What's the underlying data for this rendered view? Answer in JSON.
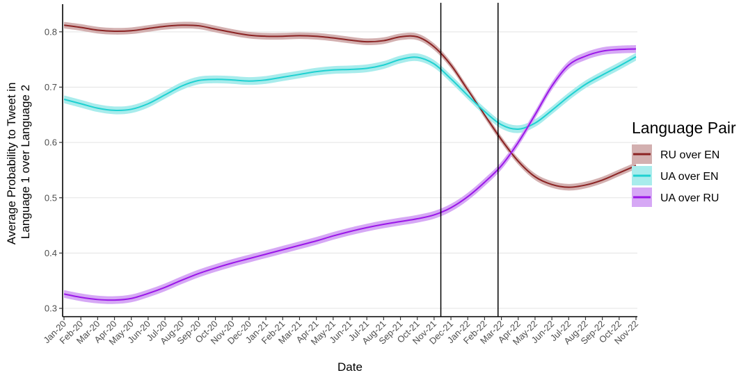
{
  "chart_data": {
    "type": "line",
    "title": "",
    "xlabel": "Date",
    "ylabel_lines": [
      "Average Probability to Tweet in",
      "Language 1 over Language 2"
    ],
    "x_categories": [
      "Jan-20",
      "Feb-20",
      "Mar-20",
      "Apr-20",
      "May-20",
      "Jun-20",
      "Jul-20",
      "Aug-20",
      "Sep-20",
      "Oct-20",
      "Nov-20",
      "Dec-20",
      "Jan-21",
      "Feb-21",
      "Mar-21",
      "Apr-21",
      "May-21",
      "Jun-21",
      "Jul-21",
      "Aug-21",
      "Sep-21",
      "Oct-21",
      "Nov-21",
      "Dec-21",
      "Jan-22",
      "Feb-22",
      "Mar-22",
      "Apr-22",
      "May-22",
      "Jun-22",
      "Jul-22",
      "Aug-22",
      "Sep-22",
      "Oct-22",
      "Nov-22"
    ],
    "ylim": [
      0.285,
      0.85
    ],
    "y_ticks": [
      0.3,
      0.4,
      0.5,
      0.6,
      0.7,
      0.8
    ],
    "y_tick_labels": [
      "0.3",
      "0.4",
      "0.5",
      "0.6",
      "0.7",
      "0.8"
    ],
    "grid": true,
    "legend_position": "right",
    "legend_title": "Language Pair",
    "vertical_lines": [
      {
        "name": "event-line-1",
        "x": "Nov-21",
        "offset_months": 0.4
      },
      {
        "name": "event-line-2",
        "x": "Feb-22",
        "offset_months": 0.8
      }
    ],
    "series": [
      {
        "name": "RU over EN",
        "color": "#8B2323",
        "band_color": "#d3b0b0",
        "band_halfwidth": 0.006,
        "values": [
          0.812,
          0.808,
          0.803,
          0.801,
          0.802,
          0.806,
          0.81,
          0.812,
          0.811,
          0.805,
          0.799,
          0.794,
          0.792,
          0.792,
          0.793,
          0.792,
          0.789,
          0.785,
          0.782,
          0.784,
          0.791,
          0.791,
          0.773,
          0.74,
          0.695,
          0.65,
          0.605,
          0.566,
          0.538,
          0.524,
          0.519,
          0.523,
          0.532,
          0.545,
          0.558
        ]
      },
      {
        "name": "UA over EN",
        "color": "#1ED1D1",
        "band_color": "#a8ecec",
        "band_halfwidth": 0.007,
        "values": [
          0.678,
          0.67,
          0.662,
          0.658,
          0.66,
          0.67,
          0.686,
          0.702,
          0.712,
          0.714,
          0.713,
          0.711,
          0.713,
          0.718,
          0.723,
          0.728,
          0.731,
          0.732,
          0.734,
          0.74,
          0.75,
          0.754,
          0.742,
          0.715,
          0.685,
          0.656,
          0.632,
          0.624,
          0.635,
          0.658,
          0.683,
          0.705,
          0.722,
          0.738,
          0.755
        ]
      },
      {
        "name": "UA over RU",
        "color": "#9A16E8",
        "band_color": "#d6a8f5",
        "band_halfwidth": 0.007,
        "values": [
          0.326,
          0.32,
          0.316,
          0.315,
          0.318,
          0.327,
          0.338,
          0.351,
          0.363,
          0.373,
          0.382,
          0.39,
          0.398,
          0.406,
          0.414,
          0.422,
          0.431,
          0.439,
          0.446,
          0.452,
          0.457,
          0.462,
          0.469,
          0.482,
          0.502,
          0.528,
          0.558,
          0.6,
          0.65,
          0.702,
          0.74,
          0.756,
          0.765,
          0.768,
          0.769
        ]
      }
    ]
  }
}
